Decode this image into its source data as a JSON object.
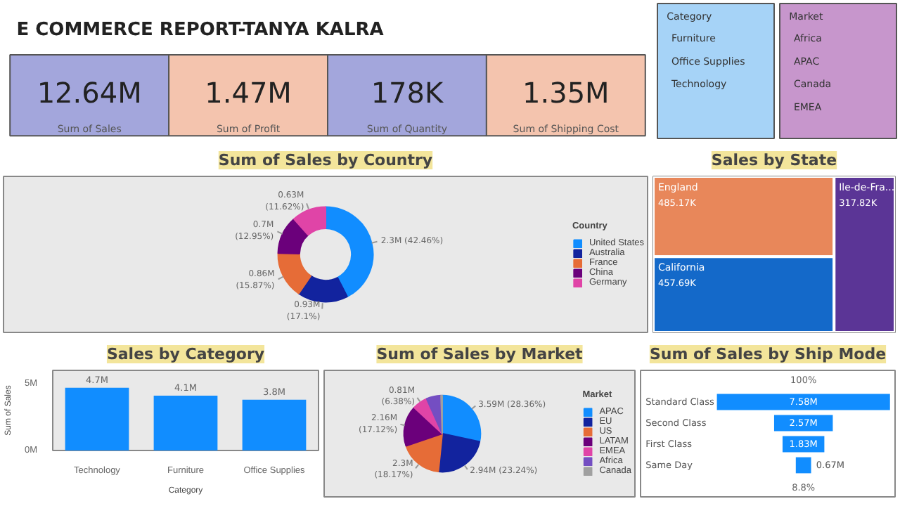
{
  "chart_data": [
    {
      "type": "other",
      "title": "E COMMERCE REPORT-TANYA KALRA",
      "categories": [
        "Sum of Sales",
        "Sum of Profit",
        "Sum of Quantity",
        "Sum of Shipping Cost"
      ],
      "value_labels": [
        "12.64M",
        "1.47M",
        "178K",
        "1.35M"
      ],
      "colors": [
        "#a3a6dc",
        "#f4c4ae",
        "#a3a6dc",
        "#f4c4ae"
      ]
    },
    {
      "type": "other",
      "title": "Category",
      "categories": [
        "Furniture",
        "Office Supplies",
        "Technology"
      ],
      "color": "#a6d3f7"
    },
    {
      "type": "other",
      "title": "Market",
      "categories": [
        "Africa",
        "APAC",
        "Canada",
        "EMEA"
      ],
      "color": "#c796cc"
    },
    {
      "type": "donut",
      "title": "Sum of Sales by Country",
      "legend_title": "Country",
      "legend": "right",
      "categories": [
        "United States",
        "Australia",
        "France",
        "China",
        "Germany"
      ],
      "values": [
        42.46,
        17.1,
        15.87,
        12.95,
        11.62
      ],
      "value_labels": [
        "2.3M (42.46%)",
        "0.93M (17.1%)",
        "0.86M (15.87%)",
        "0.7M (12.95%)",
        "0.63M (11.62%)"
      ],
      "colors": [
        "#118dff",
        "#12239e",
        "#e66c37",
        "#6b007b",
        "#e044a7"
      ]
    },
    {
      "type": "other",
      "title": "Sales by State",
      "categories": [
        "England",
        "California",
        "Ile-de-Fra..."
      ],
      "values": [
        485.17,
        457.69,
        317.82
      ],
      "value_labels": [
        "485.17K",
        "457.69K",
        "317.82K"
      ],
      "colors": [
        "#e8875a",
        "#1469c9",
        "#5b3596"
      ]
    },
    {
      "type": "bar",
      "title": "Sales by Category",
      "xlabel": "Category",
      "ylabel": "Sum of Sales",
      "categories": [
        "Technology",
        "Furniture",
        "Office Supplies"
      ],
      "values": [
        4.7,
        4.1,
        3.8
      ],
      "value_labels": [
        "4.7M",
        "4.1M",
        "3.8M"
      ],
      "color": "#118dff",
      "ylim": [
        0,
        6
      ],
      "yticks": [
        {
          "value": 0,
          "label": "0M"
        },
        {
          "value": 5,
          "label": "5M"
        }
      ],
      "grid": false
    },
    {
      "type": "pie",
      "title": "Sum of Sales by Market",
      "legend_title": "Market",
      "legend": "right",
      "categories": [
        "APAC",
        "EU",
        "US",
        "LATAM",
        "EMEA",
        "Africa",
        "Canada"
      ],
      "values": [
        28.36,
        23.24,
        18.17,
        17.12,
        6.38,
        6.2,
        0.52
      ],
      "value_labels": [
        "3.59M (28.36%)",
        "2.94M (23.24%)",
        "2.3M (18.17%)",
        "2.16M (17.12%)",
        "0.81M (6.38%)",
        null,
        null
      ],
      "colors": [
        "#118dff",
        "#12239e",
        "#e66c37",
        "#6b007b",
        "#e044a7",
        "#744ec2",
        "#a0a0a0"
      ]
    },
    {
      "type": "other",
      "title": "Sum of Sales by Ship Mode",
      "categories": [
        "Standard Class",
        "Second Class",
        "First Class",
        "Same Day"
      ],
      "values": [
        7.58,
        2.57,
        1.83,
        0.67
      ],
      "value_labels": [
        "7.58M",
        "2.57M",
        "1.83M",
        "0.67M"
      ],
      "colors": [
        "#118dff",
        "#118dff",
        "#118dff",
        "#118dff"
      ],
      "annotations": [
        "100%",
        "8.8%"
      ]
    }
  ]
}
